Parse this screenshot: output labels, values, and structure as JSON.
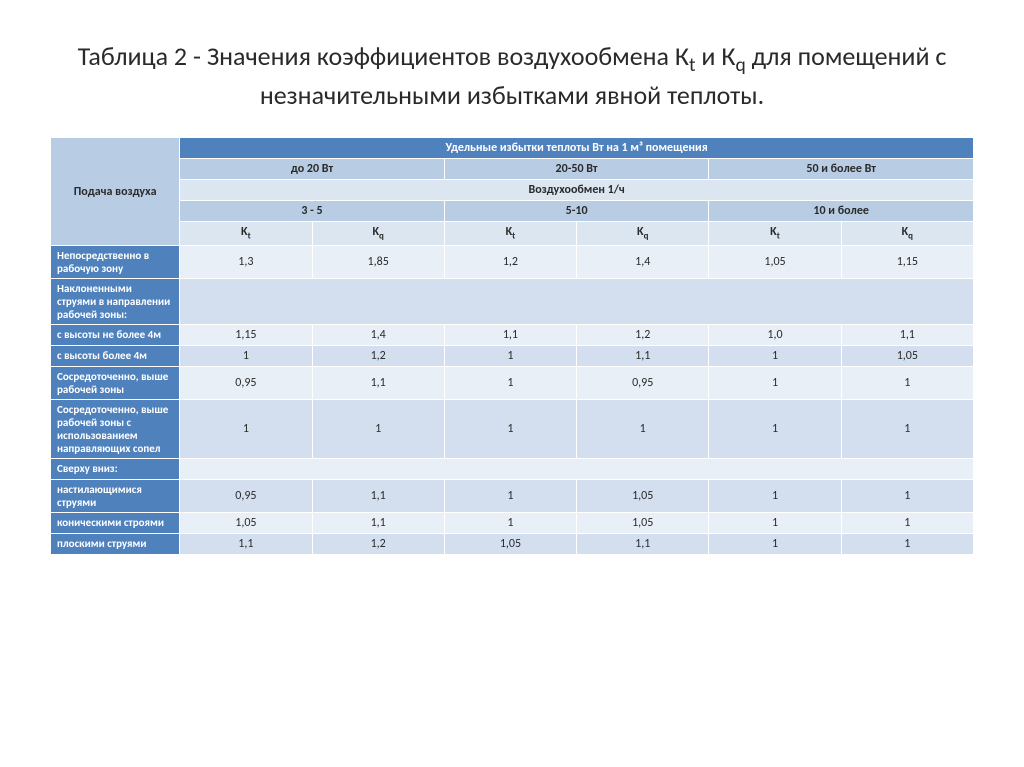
{
  "title_line1": "Таблица 2 - Значения коэффициентов воздухообмена К",
  "title_sub_t": "t",
  "title_mid": " и К",
  "title_sub_q": "q",
  "title_end": " для помещений с незначительными избытками явной теплоты.",
  "header": {
    "row_header": "Подача воздуха",
    "top": "Удельные избытки теплоты Вт на 1 м³ помещения",
    "heat_cols": [
      "до 20 Вт",
      "20-50 Вт",
      "50 и более Вт"
    ],
    "exchange_label": "Воздухообмен 1/ч",
    "exchange_cols": [
      "3 - 5",
      "5-10",
      "10 и более"
    ],
    "k_labels": [
      "Kₜ",
      "K_q",
      "Kₜ",
      "K_q",
      "Kₜ",
      "K_q"
    ]
  },
  "rows": [
    {
      "label": "Непосредственно в рабочую зону",
      "vals": [
        "1,3",
        "1,85",
        "1,2",
        "1,4",
        "1,05",
        "1,15"
      ],
      "shade": "light"
    },
    {
      "label": "Наклоненными струями в направлении рабочей зоны:",
      "vals": null,
      "shade": "dark"
    },
    {
      "label": "с высоты не более 4м",
      "vals": [
        "1,15",
        "1,4",
        "1,1",
        "1,2",
        "1,0",
        "1,1"
      ],
      "shade": "light"
    },
    {
      "label": "с высоты более 4м",
      "vals": [
        "1",
        "1,2",
        "1",
        "1,1",
        "1",
        "1,05"
      ],
      "shade": "dark"
    },
    {
      "label": "Сосредоточенно, выше рабочей зоны",
      "vals": [
        "0,95",
        "1,1",
        "1",
        "0,95",
        "1",
        "1"
      ],
      "shade": "light"
    },
    {
      "label": "Сосредоточенно, выше рабочей зоны с использованием направляющих сопел",
      "vals": [
        "1",
        "1",
        "1",
        "1",
        "1",
        "1"
      ],
      "shade": "dark"
    },
    {
      "label": "Сверху вниз:",
      "vals": null,
      "shade": "light"
    },
    {
      "label": "настилающимися струями",
      "vals": [
        "0,95",
        "1,1",
        "1",
        "1,05",
        "1",
        "1"
      ],
      "shade": "dark"
    },
    {
      "label": "коническими строями",
      "vals": [
        "1,05",
        "1,1",
        "1",
        "1,05",
        "1",
        "1"
      ],
      "shade": "light"
    },
    {
      "label": "плоскими струями",
      "vals": [
        "1,1",
        "1,2",
        "1,05",
        "1,1",
        "1",
        "1"
      ],
      "shade": "dark"
    }
  ],
  "styling": {
    "header_dark_bg": "#4f81bd",
    "header_light_bg": "#b8cde4",
    "header_lighter_bg": "#dce6f1",
    "row_label_bg": "#4f81bd",
    "data_light_bg": "#e9eff7",
    "data_dark_bg": "#d3dfee",
    "border_color": "#ffffff",
    "title_fontsize": 26,
    "table_fontsize": 12,
    "col_widths_pct": [
      14,
      14.3,
      14.3,
      14.3,
      14.3,
      14.3,
      14.3
    ]
  }
}
